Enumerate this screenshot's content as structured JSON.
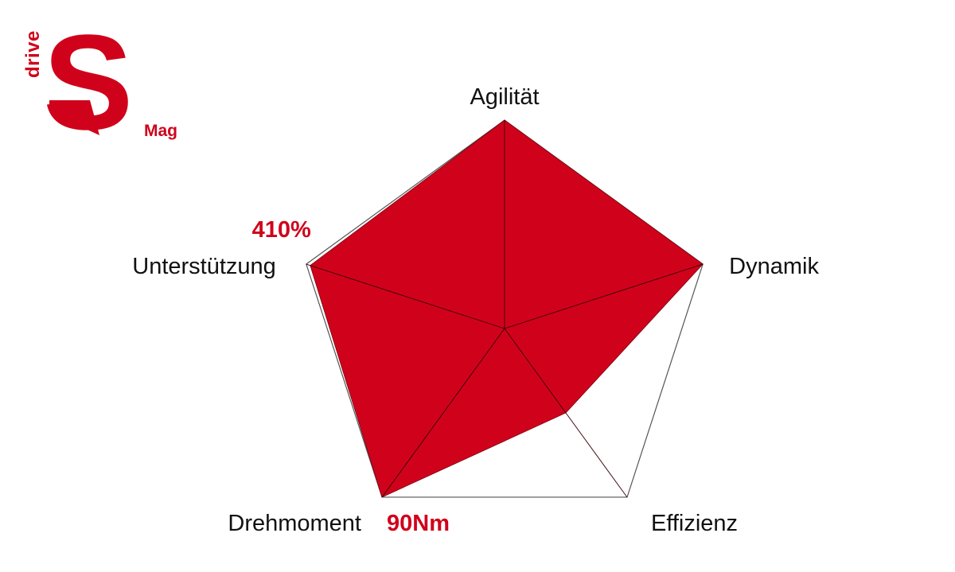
{
  "logo": {
    "small_text": "drive",
    "letter": "S",
    "suffix": "Mag",
    "color": "#d0021b"
  },
  "chart_data": {
    "type": "radar",
    "axes": [
      "Agilität",
      "Dynamik",
      "Effizienz",
      "Drehmoment",
      "Unterstützung"
    ],
    "values": [
      1.0,
      1.0,
      0.5,
      1.0,
      0.98
    ],
    "range": [
      0,
      1
    ],
    "annotations": {
      "Unterstützung": "410%",
      "Drehmoment": "90Nm"
    },
    "fill_color": "#d0021b",
    "grid_color": "#555555",
    "grid": true
  }
}
